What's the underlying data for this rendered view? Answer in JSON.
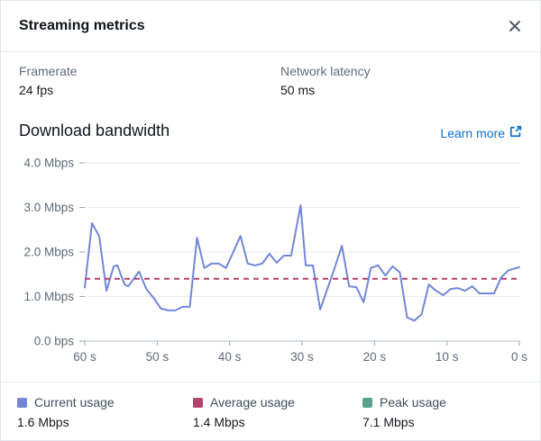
{
  "header": {
    "title": "Streaming metrics"
  },
  "metrics": [
    {
      "label": "Framerate",
      "value": "24 fps"
    },
    {
      "label": "Network latency",
      "value": "50 ms"
    }
  ],
  "section": {
    "title": "Download bandwidth",
    "link_label": "Learn more"
  },
  "chart_data": {
    "type": "line",
    "title": "Download bandwidth",
    "x_unit": "seconds ago",
    "xlim": [
      60,
      0
    ],
    "ylim": [
      0,
      4.0
    ],
    "grid": true,
    "x_ticks": [
      {
        "t": 60,
        "label": "60 s"
      },
      {
        "t": 50,
        "label": "50 s"
      },
      {
        "t": 40,
        "label": "40 s"
      },
      {
        "t": 30,
        "label": "30 s"
      },
      {
        "t": 20,
        "label": "20 s"
      },
      {
        "t": 10,
        "label": "10 s"
      },
      {
        "t": 0,
        "label": "0 s"
      }
    ],
    "y_ticks": [
      {
        "v": 4.0,
        "label": "4.0 Mbps"
      },
      {
        "v": 3.0,
        "label": "3.0 Mbps"
      },
      {
        "v": 2.0,
        "label": "2.0 Mbps"
      },
      {
        "v": 1.0,
        "label": "1.0 Mbps"
      },
      {
        "v": 0.0,
        "label": "0.0 bps"
      }
    ],
    "series": [
      {
        "name": "Current usage",
        "type": "line",
        "color": "#7287d7",
        "points": [
          [
            60,
            1.2
          ],
          [
            59,
            2.65
          ],
          [
            58,
            2.35
          ],
          [
            57,
            1.13
          ],
          [
            56,
            1.68
          ],
          [
            55.5,
            1.7
          ],
          [
            54.5,
            1.27
          ],
          [
            54,
            1.23
          ],
          [
            52.5,
            1.56
          ],
          [
            51.5,
            1.17
          ],
          [
            50.5,
            0.97
          ],
          [
            49.5,
            0.73
          ],
          [
            48.5,
            0.69
          ],
          [
            47.5,
            0.69
          ],
          [
            46.5,
            0.77
          ],
          [
            45.5,
            0.77
          ],
          [
            44.5,
            2.32
          ],
          [
            43.5,
            1.64
          ],
          [
            42.5,
            1.74
          ],
          [
            41.5,
            1.74
          ],
          [
            40.5,
            1.64
          ],
          [
            38.5,
            2.36
          ],
          [
            37.5,
            1.74
          ],
          [
            36.5,
            1.7
          ],
          [
            35.5,
            1.74
          ],
          [
            34.5,
            1.96
          ],
          [
            33.5,
            1.76
          ],
          [
            32.5,
            1.92
          ],
          [
            31.5,
            1.92
          ],
          [
            30.2,
            3.05
          ],
          [
            29.5,
            1.7
          ],
          [
            28.5,
            1.7
          ],
          [
            27.5,
            0.71
          ],
          [
            25.5,
            1.64
          ],
          [
            24.5,
            2.14
          ],
          [
            23.5,
            1.23
          ],
          [
            22.5,
            1.21
          ],
          [
            21.5,
            0.87
          ],
          [
            20.5,
            1.64
          ],
          [
            19.5,
            1.7
          ],
          [
            18.5,
            1.47
          ],
          [
            17.5,
            1.68
          ],
          [
            16.5,
            1.54
          ],
          [
            15.5,
            0.53
          ],
          [
            14.5,
            0.46
          ],
          [
            13.5,
            0.6
          ],
          [
            12.5,
            1.27
          ],
          [
            11.5,
            1.13
          ],
          [
            10.5,
            1.03
          ],
          [
            9.5,
            1.17
          ],
          [
            8.5,
            1.19
          ],
          [
            7.5,
            1.13
          ],
          [
            6.5,
            1.23
          ],
          [
            5.5,
            1.07
          ],
          [
            4.5,
            1.07
          ],
          [
            3.5,
            1.07
          ],
          [
            2.5,
            1.43
          ],
          [
            1.5,
            1.59
          ],
          [
            0,
            1.66
          ]
        ]
      },
      {
        "name": "Average usage",
        "type": "threshold",
        "color": "#b1436e",
        "value": 1.4
      }
    ],
    "grid_color": "#e8eaed",
    "axis_color": "#b6bec8",
    "tick_color": "#9aa5b1",
    "tick_label_color": "#5f6b7a"
  },
  "legend": [
    {
      "label": "Current usage",
      "value": "1.6 Mbps",
      "color": "#7287d7"
    },
    {
      "label": "Average usage",
      "value": "1.4 Mbps",
      "color": "#b1436e"
    },
    {
      "label": "Peak usage",
      "value": "7.1 Mbps",
      "color": "#57a18e"
    }
  ],
  "colors": {
    "link": "#0972d3",
    "heading": "#0f141a",
    "label": "#5f6b7a"
  }
}
